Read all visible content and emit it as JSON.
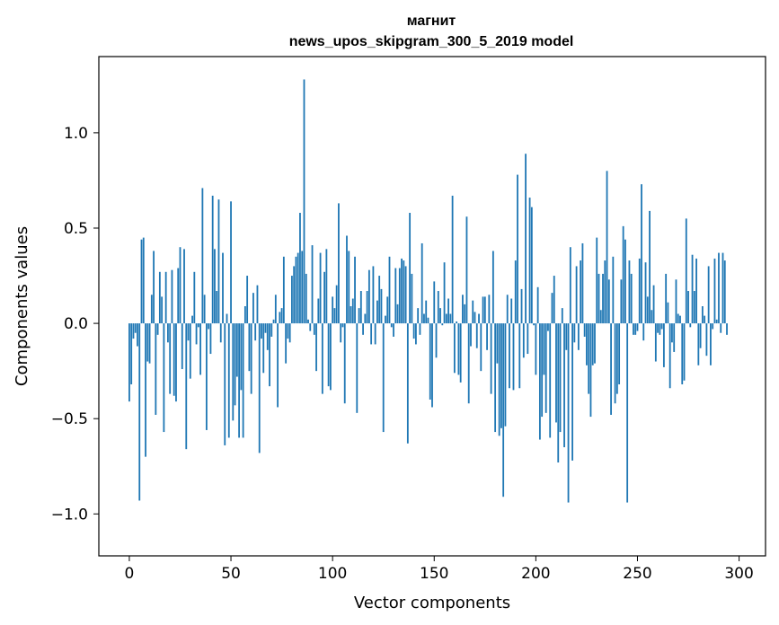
{
  "chart_data": {
    "type": "bar",
    "title": [
      "магнит",
      "news_upos_skipgram_300_5_2019 model"
    ],
    "xlabel": "Vector components",
    "ylabel": "Components values",
    "xlim": [
      -15,
      313
    ],
    "ylim": [
      -1.22,
      1.4
    ],
    "xticks": [
      0,
      50,
      100,
      150,
      200,
      250,
      300
    ],
    "yticks": [
      -1.0,
      -0.5,
      0.0,
      0.5,
      1.0
    ],
    "ytick_labels": [
      "−1.0",
      "−0.5",
      "0.0",
      "0.5",
      "1.0"
    ],
    "grid": false,
    "bar_color": "#1f77b4",
    "x": "0..299",
    "values": [
      -0.41,
      -0.32,
      -0.08,
      -0.05,
      -0.12,
      -0.93,
      0.44,
      0.45,
      -0.7,
      -0.2,
      -0.21,
      0.15,
      0.38,
      -0.48,
      -0.06,
      0.27,
      0.14,
      -0.57,
      0.27,
      -0.1,
      -0.37,
      0.28,
      -0.38,
      -0.41,
      0.29,
      0.4,
      -0.24,
      0.39,
      -0.66,
      -0.09,
      -0.29,
      0.04,
      0.27,
      -0.11,
      -0.02,
      -0.27,
      0.71,
      0.15,
      -0.56,
      -0.03,
      -0.16,
      0.67,
      0.39,
      0.17,
      0.65,
      -0.1,
      0.37,
      -0.64,
      0.05,
      -0.6,
      0.64,
      -0.51,
      -0.43,
      -0.28,
      -0.6,
      -0.35,
      -0.6,
      0.09,
      0.25,
      -0.25,
      -0.37,
      0.16,
      -0.09,
      0.2,
      -0.68,
      -0.08,
      -0.26,
      -0.05,
      -0.14,
      -0.33,
      -0.07,
      0.02,
      0.15,
      -0.44,
      0.06,
      0.08,
      0.35,
      -0.21,
      -0.08,
      -0.1,
      0.25,
      0.3,
      0.35,
      0.37,
      0.58,
      0.38,
      1.28,
      0.26,
      0.02,
      -0.04,
      0.41,
      -0.06,
      -0.25,
      0.13,
      0.37,
      -0.37,
      0.27,
      0.39,
      -0.33,
      -0.35,
      0.14,
      0.08,
      0.2,
      0.63,
      -0.1,
      -0.02,
      -0.42,
      0.46,
      0.38,
      0.09,
      0.13,
      0.35,
      -0.47,
      0.08,
      0.17,
      -0.06,
      0.05,
      0.17,
      0.28,
      -0.11,
      0.3,
      -0.11,
      0.12,
      0.25,
      0.18,
      -0.57,
      0.04,
      0.14,
      0.35,
      -0.02,
      -0.07,
      0.29,
      0.1,
      0.29,
      0.34,
      0.33,
      0.3,
      -0.63,
      0.58,
      0.26,
      -0.08,
      -0.11,
      0.08,
      -0.06,
      0.42,
      0.05,
      0.12,
      0.03,
      -0.4,
      -0.44,
      0.22,
      -0.18,
      0.17,
      0.08,
      -0.01,
      0.32,
      0.05,
      0.13,
      0.05,
      0.67,
      -0.26,
      0.01,
      -0.27,
      -0.31,
      0.15,
      0.1,
      0.56,
      -0.42,
      -0.12,
      0.12,
      0.06,
      -0.13,
      0.05,
      -0.25,
      0.14,
      0.14,
      -0.14,
      0.15,
      -0.37,
      0.38,
      -0.57,
      -0.21,
      -0.59,
      -0.55,
      -0.91,
      -0.54,
      0.15,
      -0.34,
      0.13,
      -0.35,
      0.33,
      0.78,
      -0.34,
      0.18,
      -0.18,
      0.89,
      -0.16,
      0.66,
      0.61,
      -0.01,
      -0.27,
      0.19,
      -0.61,
      -0.49,
      -0.27,
      -0.47,
      -0.04,
      -0.6,
      0.16,
      0.25,
      -0.52,
      -0.73,
      -0.57,
      0.08,
      -0.65,
      -0.14,
      -0.94,
      0.4,
      -0.72,
      -0.1,
      0.3,
      -0.14,
      0.33,
      0.42,
      -0.07,
      -0.22,
      -0.37,
      -0.49,
      -0.22,
      -0.21,
      0.45,
      0.26,
      0.07,
      0.26,
      0.33,
      0.8,
      0.23,
      -0.48,
      0.35,
      -0.42,
      -0.37,
      -0.32,
      0.23,
      0.51,
      0.44,
      -0.94,
      0.33,
      0.26,
      -0.06,
      -0.06,
      -0.04,
      0.34,
      0.73,
      -0.09,
      0.32,
      0.14,
      0.59,
      0.07,
      0.2,
      -0.2,
      -0.05,
      -0.06,
      -0.03,
      -0.23,
      0.26,
      0.11,
      -0.34,
      -0.1,
      -0.15,
      0.23,
      0.05,
      0.04,
      -0.32,
      -0.3,
      0.55,
      0.17,
      -0.02,
      0.36,
      0.17,
      0.34,
      -0.22,
      -0.13,
      0.09,
      0.04,
      -0.17,
      0.3,
      -0.22,
      -0.03,
      0.34,
      0.02,
      0.37,
      -0.05,
      0.37,
      0.33,
      -0.06
    ]
  }
}
